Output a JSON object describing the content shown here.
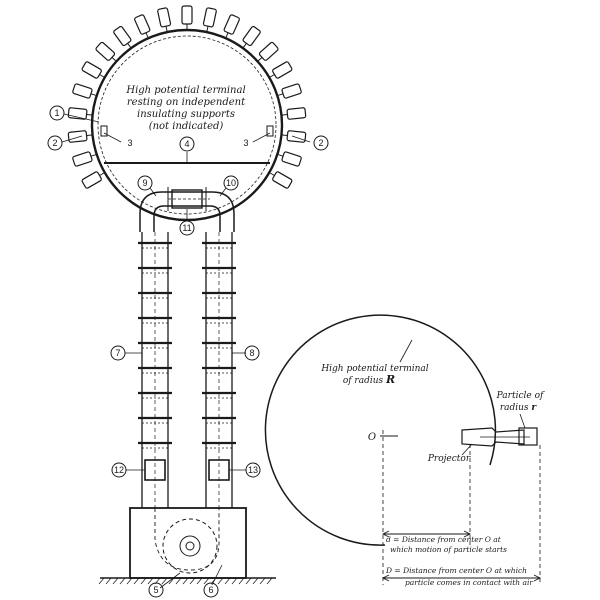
{
  "left_figure": {
    "terminal_text": [
      "High potential terminal",
      "resting on independent",
      "insulating supports",
      "(not indicated)"
    ],
    "callouts": [
      "1",
      "2",
      "3",
      "3",
      "2",
      "4",
      "9",
      "10",
      "11",
      "7",
      "8",
      "12",
      "13",
      "5",
      "6"
    ]
  },
  "right_figure": {
    "terminal_label": [
      "High potential terminal",
      "of radius"
    ],
    "terminal_symbol": "R",
    "center_label": "O",
    "particle_label": [
      "Particle of",
      "radius"
    ],
    "particle_symbol": "r",
    "projector_label": "Projector",
    "d_label": [
      "d = Distance from center O at",
      "which motion of particle starts"
    ],
    "D_label": [
      "D = Distance from center O at which",
      "particle comes in contact with air"
    ]
  }
}
